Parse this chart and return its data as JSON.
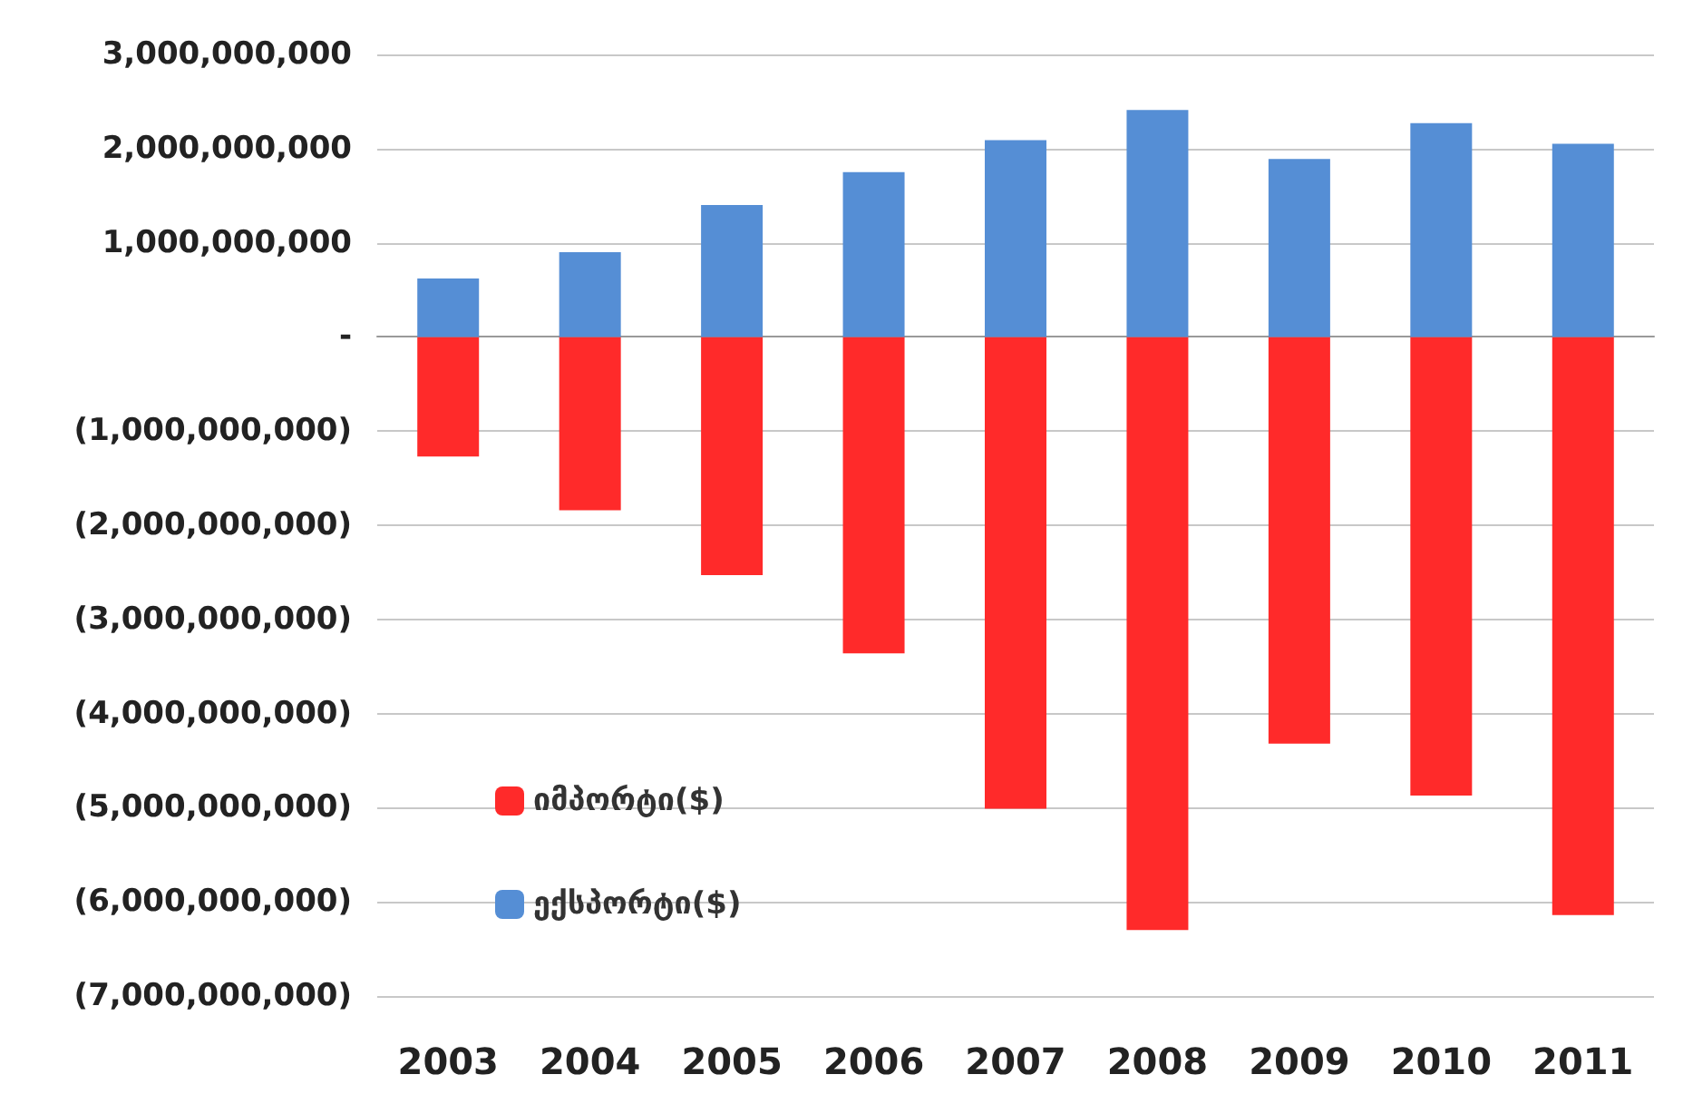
{
  "chart_data": {
    "type": "bar",
    "categories": [
      "2003",
      "2004",
      "2005",
      "2006",
      "2007",
      "2008",
      "2009",
      "2010",
      "2011"
    ],
    "series": [
      {
        "name": "იმპორტი($)",
        "color": "#ff2a2a",
        "values": [
          -1270000000,
          -1840000000,
          -2530000000,
          -3360000000,
          -5010000000,
          -6300000000,
          -4320000000,
          -4870000000,
          -6140000000
        ]
      },
      {
        "name": "ექსპორტი($)",
        "color": "#558ed5",
        "values": [
          620000000,
          900000000,
          1400000000,
          1750000000,
          2090000000,
          2410000000,
          1890000000,
          2270000000,
          2050000000
        ]
      }
    ],
    "stacked": true,
    "ylim": [
      -7000000000,
      3000000000
    ],
    "yticks": [
      {
        "value": -7000000000,
        "label": "(7,000,000,000)"
      },
      {
        "value": -6000000000,
        "label": "(6,000,000,000)"
      },
      {
        "value": -5000000000,
        "label": "(5,000,000,000)"
      },
      {
        "value": -4000000000,
        "label": "(4,000,000,000)"
      },
      {
        "value": -3000000000,
        "label": "(3,000,000,000)"
      },
      {
        "value": -2000000000,
        "label": "(2,000,000,000)"
      },
      {
        "value": -1000000000,
        "label": "(1,000,000,000)"
      },
      {
        "value": 0,
        "label": "-"
      },
      {
        "value": 1000000000,
        "label": "1,000,000,000"
      },
      {
        "value": 2000000000,
        "label": "2,000,000,000"
      },
      {
        "value": 3000000000,
        "label": "3,000,000,000"
      }
    ],
    "grid": "y",
    "legend": "bottom left"
  }
}
